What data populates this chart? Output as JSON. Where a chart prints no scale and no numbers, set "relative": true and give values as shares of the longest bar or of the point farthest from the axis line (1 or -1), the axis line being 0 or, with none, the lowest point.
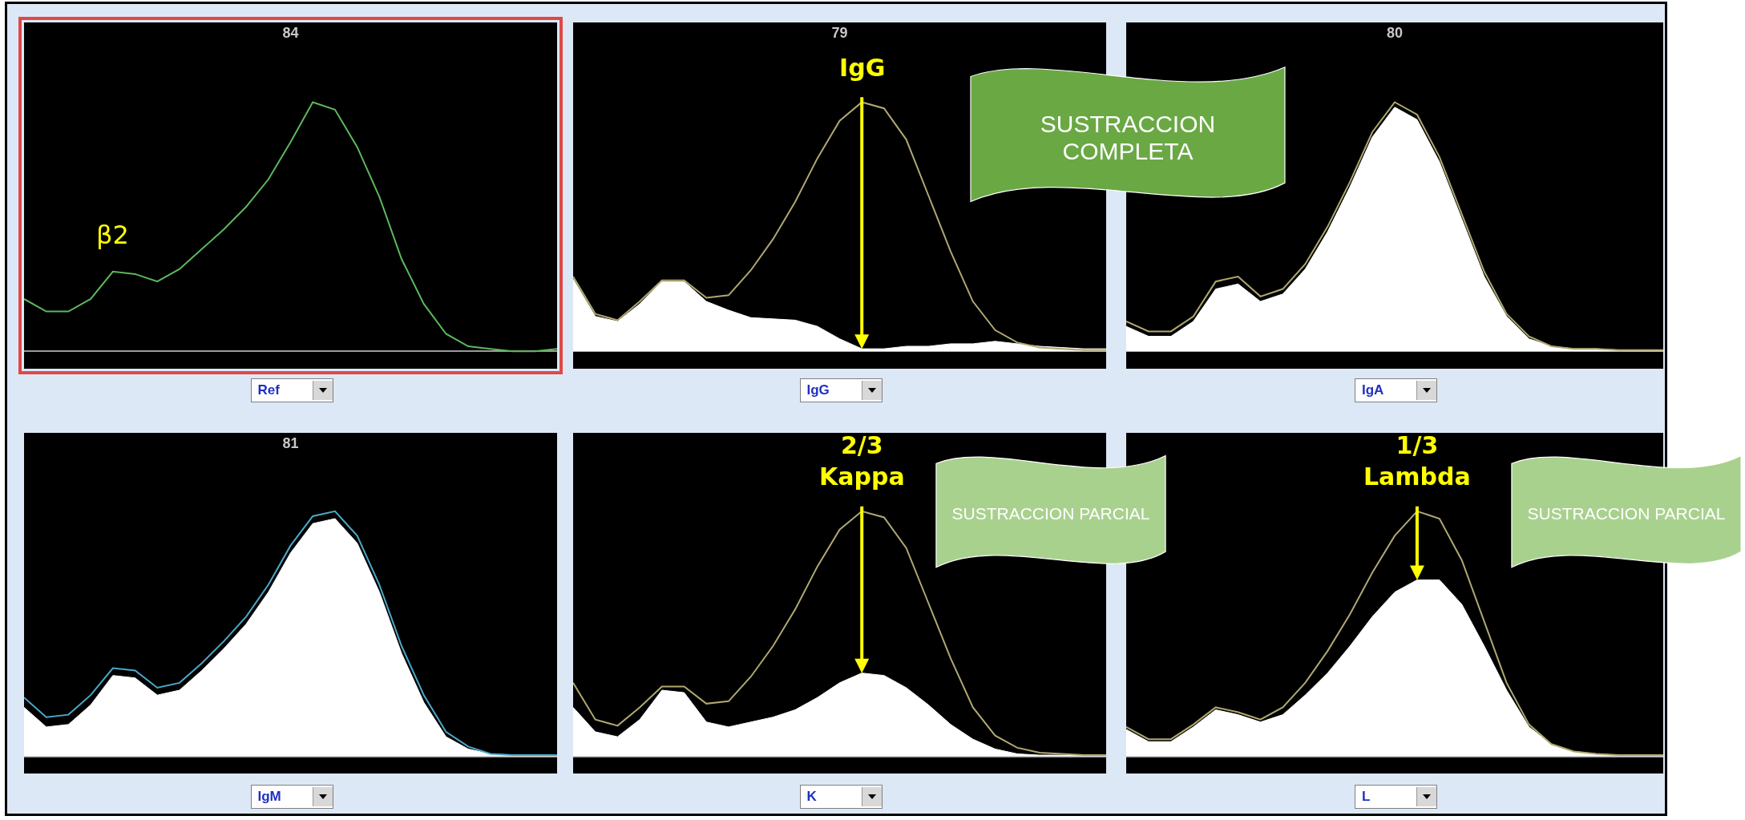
{
  "chart_data": [
    {
      "type": "line",
      "title": "84",
      "xlabel": "Ref",
      "relative": true,
      "categories": [
        null,
        null,
        null,
        null,
        null,
        null,
        null,
        null,
        null,
        null,
        null,
        null,
        null,
        null,
        null,
        null,
        null,
        null,
        null,
        null,
        null,
        null,
        null,
        null,
        null
      ],
      "series": [
        {
          "type": "line",
          "color": "#5cb85c",
          "values": [
            0.21,
            0.16,
            0.16,
            0.21,
            0.32,
            0.31,
            0.28,
            0.33,
            0.41,
            0.49,
            0.58,
            0.69,
            0.84,
            1.0,
            0.97,
            0.82,
            0.62,
            0.37,
            0.19,
            0.07,
            0.02,
            0.01,
            0.0,
            0.0,
            0.01
          ]
        }
      ],
      "annotations": [
        "β2"
      ]
    },
    {
      "type": "line",
      "title": "79",
      "xlabel": "IgG",
      "relative": true,
      "categories": [
        null,
        null,
        null,
        null,
        null,
        null,
        null,
        null,
        null,
        null,
        null,
        null,
        null,
        null,
        null,
        null,
        null,
        null,
        null,
        null,
        null,
        null,
        null,
        null,
        null
      ],
      "series": [
        {
          "type": "line",
          "color": "#b0a870",
          "values": [
            0.3,
            0.15,
            0.125,
            0.2,
            0.285,
            0.285,
            0.215,
            0.225,
            0.325,
            0.45,
            0.6,
            0.775,
            0.925,
            1.0,
            0.975,
            0.85,
            0.625,
            0.4,
            0.2,
            0.085,
            0.035,
            0.015,
            0.01,
            0.005,
            0.005
          ]
        },
        {
          "type": "area",
          "color": "#ffffff",
          "values": [
            0.29,
            0.14,
            0.12,
            0.19,
            0.28,
            0.28,
            0.2,
            0.165,
            0.135,
            0.13,
            0.125,
            0.1,
            0.05,
            0.01,
            0.01,
            0.02,
            0.02,
            0.03,
            0.03,
            0.04,
            0.03,
            0.02,
            0.015,
            0.01,
            0.01
          ]
        }
      ],
      "annotations": [
        "IgG",
        "SUSTRACCION COMPLETA"
      ]
    },
    {
      "type": "line",
      "title": "80",
      "xlabel": "IgA",
      "relative": true,
      "categories": [
        null,
        null,
        null,
        null,
        null,
        null,
        null,
        null,
        null,
        null,
        null,
        null,
        null,
        null,
        null,
        null,
        null,
        null,
        null,
        null,
        null,
        null,
        null,
        null,
        null
      ],
      "series": [
        {
          "type": "line",
          "color": "#b0a870",
          "values": [
            0.12,
            0.08,
            0.08,
            0.14,
            0.28,
            0.3,
            0.22,
            0.25,
            0.35,
            0.5,
            0.68,
            0.88,
            1.0,
            0.95,
            0.78,
            0.55,
            0.32,
            0.15,
            0.06,
            0.02,
            0.01,
            0.01,
            0.005,
            0.005,
            0.005
          ]
        },
        {
          "type": "area",
          "color": "#ffffff",
          "values": [
            0.1,
            0.06,
            0.06,
            0.12,
            0.25,
            0.27,
            0.2,
            0.23,
            0.33,
            0.48,
            0.66,
            0.86,
            0.98,
            0.93,
            0.76,
            0.53,
            0.3,
            0.14,
            0.05,
            0.02,
            0.01,
            0.01,
            0.005,
            0.005,
            0.005
          ]
        }
      ]
    },
    {
      "type": "line",
      "title": "81",
      "xlabel": "IgM",
      "relative": true,
      "categories": [
        null,
        null,
        null,
        null,
        null,
        null,
        null,
        null,
        null,
        null,
        null,
        null,
        null,
        null,
        null,
        null,
        null,
        null,
        null,
        null,
        null,
        null,
        null,
        null,
        null
      ],
      "series": [
        {
          "type": "line",
          "color": "#4aa8c8",
          "values": [
            0.24,
            0.16,
            0.17,
            0.25,
            0.36,
            0.35,
            0.28,
            0.3,
            0.38,
            0.47,
            0.57,
            0.7,
            0.86,
            0.98,
            1.0,
            0.9,
            0.7,
            0.45,
            0.25,
            0.1,
            0.04,
            0.01,
            0.005,
            0.005,
            0.005
          ]
        },
        {
          "type": "area",
          "color": "#ffffff",
          "values": [
            0.2,
            0.12,
            0.13,
            0.21,
            0.33,
            0.32,
            0.25,
            0.27,
            0.35,
            0.44,
            0.54,
            0.67,
            0.83,
            0.95,
            0.97,
            0.87,
            0.67,
            0.42,
            0.22,
            0.08,
            0.03,
            0.01,
            0.005,
            0.005,
            0.005
          ]
        }
      ]
    },
    {
      "type": "line",
      "xlabel": "K",
      "relative": true,
      "categories": [
        null,
        null,
        null,
        null,
        null,
        null,
        null,
        null,
        null,
        null,
        null,
        null,
        null,
        null,
        null,
        null,
        null,
        null,
        null,
        null,
        null,
        null,
        null,
        null,
        null
      ],
      "series": [
        {
          "type": "line",
          "color": "#b0a870",
          "values": [
            0.3,
            0.15,
            0.125,
            0.2,
            0.285,
            0.285,
            0.215,
            0.225,
            0.325,
            0.45,
            0.6,
            0.775,
            0.925,
            1.0,
            0.975,
            0.85,
            0.625,
            0.4,
            0.2,
            0.085,
            0.035,
            0.015,
            0.01,
            0.005,
            0.005
          ]
        },
        {
          "type": "area",
          "color": "#ffffff",
          "values": [
            0.2,
            0.1,
            0.08,
            0.15,
            0.27,
            0.26,
            0.14,
            0.12,
            0.14,
            0.16,
            0.19,
            0.24,
            0.3,
            0.34,
            0.33,
            0.28,
            0.21,
            0.13,
            0.07,
            0.03,
            0.01,
            0.005,
            0.005,
            0.005,
            0.005
          ]
        }
      ],
      "annotations": [
        "2/3 Kappa",
        "SUSTRACCION PARCIAL"
      ]
    },
    {
      "type": "line",
      "xlabel": "L",
      "relative": true,
      "categories": [
        null,
        null,
        null,
        null,
        null,
        null,
        null,
        null,
        null,
        null,
        null,
        null,
        null,
        null,
        null,
        null,
        null,
        null,
        null,
        null,
        null,
        null,
        null,
        null,
        null
      ],
      "series": [
        {
          "type": "line",
          "color": "#b0a870",
          "values": [
            0.12,
            0.07,
            0.07,
            0.13,
            0.2,
            0.18,
            0.15,
            0.2,
            0.3,
            0.43,
            0.58,
            0.75,
            0.9,
            1.0,
            0.97,
            0.8,
            0.55,
            0.3,
            0.13,
            0.05,
            0.02,
            0.01,
            0.005,
            0.005,
            0.005
          ]
        },
        {
          "type": "area",
          "color": "#ffffff",
          "values": [
            0.11,
            0.06,
            0.06,
            0.12,
            0.19,
            0.17,
            0.14,
            0.17,
            0.25,
            0.34,
            0.45,
            0.57,
            0.67,
            0.72,
            0.72,
            0.62,
            0.45,
            0.27,
            0.12,
            0.05,
            0.02,
            0.01,
            0.005,
            0.005,
            0.005
          ]
        }
      ],
      "annotations": [
        "1/3 Lambda",
        "SUSTRACCION PARCIAL"
      ]
    }
  ]
}
